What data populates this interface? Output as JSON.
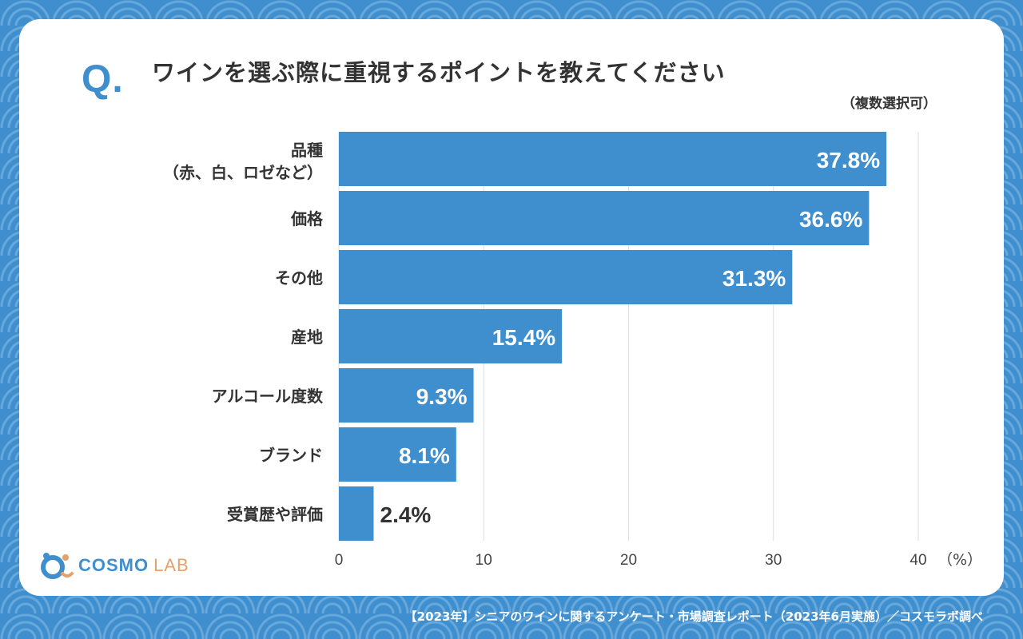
{
  "question_mark": "Q.",
  "header": {
    "title": "ワインを選ぶ際に重視するポイントを教えてください",
    "subtitle": "（複数選択可）"
  },
  "logo": {
    "main": "COSMO",
    "sub": "LAB"
  },
  "footer": "【2023年】シニアのワインに関するアンケート・市場調査レポート（2023年6月実施）／コスモラボ調べ",
  "colors": {
    "bar": "#3f8fcf",
    "background": "#3f8fcf",
    "text": "#333333",
    "grid": "#dddddd"
  },
  "chart_data": {
    "type": "bar",
    "orientation": "horizontal",
    "categories": [
      [
        "品種",
        "（赤、白、ロゼなど）"
      ],
      [
        "価格"
      ],
      [
        "その他"
      ],
      [
        "産地"
      ],
      [
        "アルコール度数"
      ],
      [
        "ブランド"
      ],
      [
        "受賞歴や評価"
      ]
    ],
    "values": [
      37.8,
      36.6,
      31.3,
      15.4,
      9.3,
      8.1,
      2.4
    ],
    "value_labels": [
      "37.8%",
      "36.6%",
      "31.3%",
      "15.4%",
      "9.3%",
      "8.1%",
      "2.4%"
    ],
    "xlim": [
      0,
      40
    ],
    "xticks": [
      0,
      10,
      20,
      30,
      40
    ],
    "xunit": "（%）",
    "grid": true
  }
}
